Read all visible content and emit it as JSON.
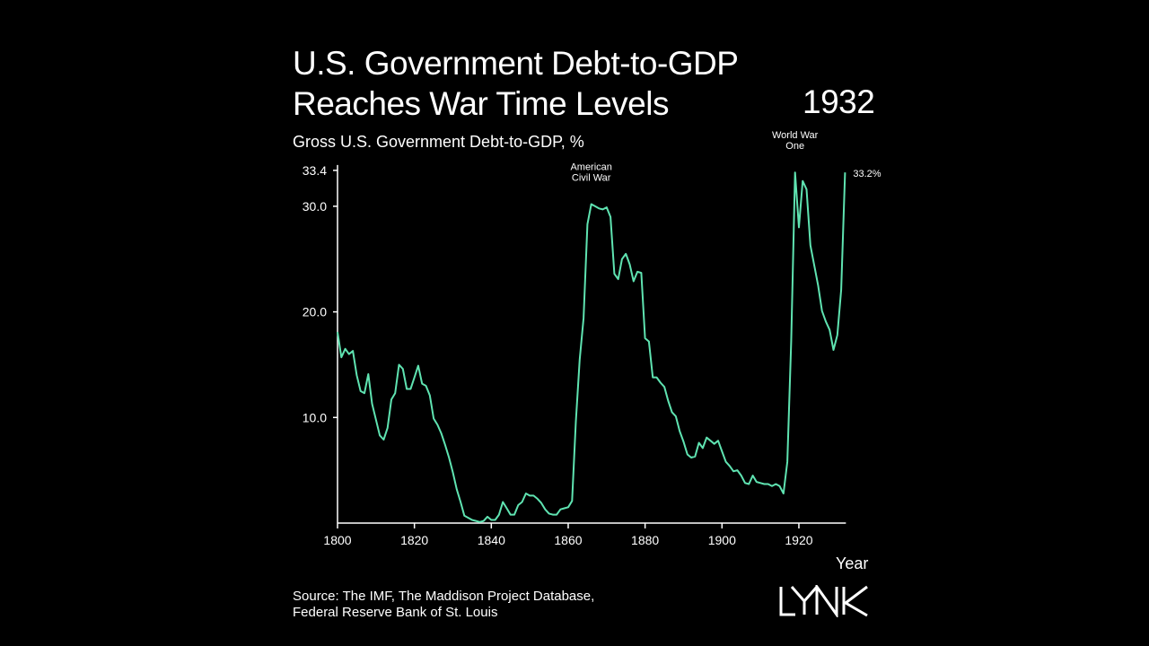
{
  "header": {
    "title_line1": "U.S. Government Debt-to-GDP",
    "title_line2": "Reaches War Time Levels",
    "current_year": "1932",
    "subtitle": "Gross U.S. Government Debt-to-GDP, %"
  },
  "footer": {
    "source_line1": "Source: The IMF, The Maddison Project Database,",
    "source_line2": "Federal Reserve Bank of St. Louis",
    "logo": "LYNK"
  },
  "chart_data": {
    "type": "line",
    "title": "U.S. Government Debt-to-GDP Reaches War Time Levels",
    "ylabel": "Gross U.S. Government Debt-to-GDP, %",
    "xlabel": "Year",
    "xlim": [
      1800,
      1932
    ],
    "ylim": [
      0,
      33.4
    ],
    "grid": false,
    "line_color": "#5fe3b1",
    "x_ticks": [
      "1800",
      "1820",
      "1840",
      "1860",
      "1880",
      "1900",
      "1920"
    ],
    "y_ticks": [
      "10.0",
      "20.0",
      "30.0",
      "33.4"
    ],
    "annotations": [
      {
        "text_line1": "American",
        "text_line2": "Civil War",
        "x": 1866
      },
      {
        "text_line1": "World War",
        "text_line2": "One",
        "x": 1919
      }
    ],
    "end_label": "33.2%",
    "series": [
      {
        "x": [
          1800,
          1801,
          1802,
          1803,
          1804,
          1805,
          1806,
          1807,
          1808,
          1809,
          1810,
          1811,
          1812,
          1813,
          1814,
          1815,
          1816,
          1817,
          1818,
          1819,
          1820,
          1821,
          1822,
          1823,
          1824,
          1825,
          1826,
          1827,
          1828,
          1829,
          1830,
          1831,
          1832,
          1833,
          1834,
          1835,
          1836,
          1837,
          1838,
          1839,
          1840,
          1841,
          1842,
          1843,
          1844,
          1845,
          1846,
          1847,
          1848,
          1849,
          1850,
          1851,
          1852,
          1853,
          1854,
          1855,
          1856,
          1857,
          1858,
          1859,
          1860,
          1861,
          1862,
          1863,
          1864,
          1865,
          1866,
          1867,
          1868,
          1869,
          1870,
          1871,
          1872,
          1873,
          1874,
          1875,
          1876,
          1877,
          1878,
          1879,
          1880,
          1881,
          1882,
          1883,
          1884,
          1885,
          1886,
          1887,
          1888,
          1889,
          1890,
          1891,
          1892,
          1893,
          1894,
          1895,
          1896,
          1897,
          1898,
          1899,
          1900,
          1901,
          1902,
          1903,
          1904,
          1905,
          1906,
          1907,
          1908,
          1909,
          1910,
          1911,
          1912,
          1913,
          1914,
          1915,
          1916,
          1917,
          1918,
          1919,
          1920,
          1921,
          1922,
          1923,
          1924,
          1925,
          1926,
          1927,
          1928,
          1929,
          1930,
          1931,
          1932
        ],
        "values": [
          18.1,
          15.7,
          16.5,
          16.0,
          16.3,
          14.0,
          12.5,
          12.3,
          14.1,
          11.3,
          9.8,
          8.3,
          7.9,
          9.0,
          11.7,
          12.3,
          15.0,
          14.6,
          12.7,
          12.7,
          13.8,
          14.9,
          13.2,
          13.0,
          12.1,
          9.9,
          9.3,
          8.5,
          7.4,
          6.2,
          4.8,
          3.2,
          2.0,
          0.7,
          0.5,
          0.3,
          0.2,
          0.1,
          0.2,
          0.6,
          0.3,
          0.3,
          0.8,
          2.0,
          1.4,
          0.8,
          0.8,
          1.7,
          2.0,
          2.8,
          2.6,
          2.6,
          2.3,
          1.9,
          1.3,
          0.9,
          0.8,
          0.8,
          1.3,
          1.4,
          1.5,
          2.1,
          9.6,
          15.5,
          19.4,
          28.3,
          30.2,
          30.0,
          29.8,
          29.7,
          29.9,
          29.0,
          23.6,
          23.1,
          25.0,
          25.5,
          24.5,
          22.9,
          23.8,
          23.7,
          17.5,
          17.2,
          13.8,
          13.8,
          13.3,
          12.9,
          11.6,
          10.5,
          10.1,
          8.7,
          7.7,
          6.5,
          6.2,
          6.3,
          7.6,
          7.1,
          8.1,
          7.8,
          7.5,
          7.8,
          6.8,
          5.8,
          5.4,
          4.9,
          5.0,
          4.5,
          3.8,
          3.7,
          4.5,
          3.9,
          3.8,
          3.7,
          3.7,
          3.5,
          3.7,
          3.5,
          2.8,
          5.8,
          17.2,
          33.2,
          28.0,
          32.4,
          31.6,
          26.3,
          24.4,
          22.5,
          20.1,
          19.1,
          18.3,
          16.4,
          17.8,
          22.1,
          33.2
        ]
      }
    ]
  }
}
